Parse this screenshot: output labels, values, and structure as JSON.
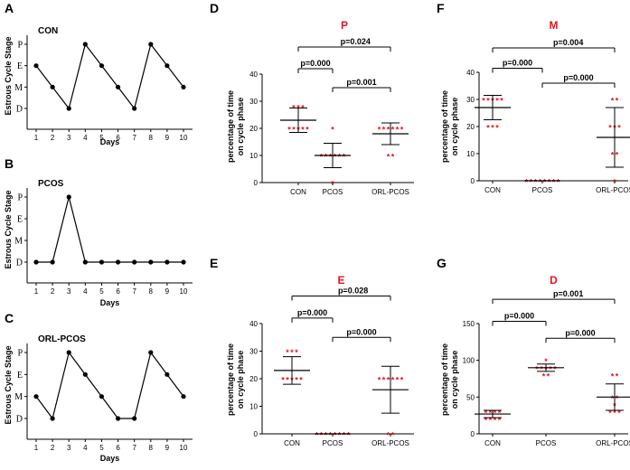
{
  "chart_data": [
    {
      "panel": "A",
      "type": "line",
      "inner_title": "CON",
      "x": [
        1,
        2,
        3,
        4,
        5,
        6,
        7,
        8,
        9,
        10
      ],
      "stages": [
        "E",
        "M",
        "D",
        "P",
        "E",
        "M",
        "D",
        "P",
        "E",
        "M"
      ],
      "y_categories": [
        "D",
        "M",
        "E",
        "P"
      ],
      "ylabel": "Estrous Cycle Stage",
      "xlabel": "Days"
    },
    {
      "panel": "B",
      "type": "line",
      "inner_title": "PCOS",
      "x": [
        1,
        2,
        3,
        4,
        5,
        6,
        7,
        8,
        9,
        10
      ],
      "stages": [
        "D",
        "D",
        "P",
        "D",
        "D",
        "D",
        "D",
        "D",
        "D",
        "D"
      ],
      "y_categories": [
        "D",
        "M",
        "E",
        "P"
      ],
      "ylabel": "Estrous Cycle Stage",
      "xlabel": "Days"
    },
    {
      "panel": "C",
      "type": "line",
      "inner_title": "ORL-PCOS",
      "x": [
        1,
        2,
        3,
        4,
        5,
        6,
        7,
        8,
        9,
        10
      ],
      "stages": [
        "M",
        "D",
        "P",
        "E",
        "M",
        "D",
        "D",
        "P",
        "E",
        "M"
      ],
      "y_categories": [
        "D",
        "M",
        "E",
        "P"
      ],
      "ylabel": "Estrous Cycle Stage",
      "xlabel": "Days"
    },
    {
      "panel": "D",
      "type": "scatter",
      "title": "P",
      "ylabel": "percentage of time\non cycle phase",
      "ylim": [
        0,
        40
      ],
      "yticks": [
        0,
        10,
        20,
        30,
        40
      ],
      "categories": [
        "CON",
        "PCOS",
        "ORL-PCOS"
      ],
      "groups": [
        {
          "mean": 23,
          "sd_upper": 27.5,
          "sd_lower": 18.5,
          "points": [
            28,
            28,
            28,
            20,
            20,
            20,
            20,
            20
          ]
        },
        {
          "mean": 10,
          "sd_upper": 14.5,
          "sd_lower": 5.5,
          "points": [
            20,
            10,
            10,
            10,
            10,
            10,
            10,
            0
          ]
        },
        {
          "mean": 18,
          "sd_upper": 22,
          "sd_lower": 14,
          "points": [
            20,
            20,
            20,
            20,
            20,
            20,
            10,
            10
          ]
        }
      ],
      "comparisons": [
        {
          "from": 0,
          "to": 2,
          "label": "p=0.024",
          "y": 50
        },
        {
          "from": 0,
          "to": 1,
          "label": "p=0.000",
          "y": 42
        },
        {
          "from": 1,
          "to": 2,
          "label": "p=0.001",
          "y": 35
        }
      ]
    },
    {
      "panel": "E",
      "type": "scatter",
      "title": "E",
      "ylabel": "percentage of time\non cycle phase",
      "ylim": [
        0,
        40
      ],
      "yticks": [
        0,
        10,
        20,
        30,
        40
      ],
      "categories": [
        "CON",
        "PCOS",
        "ORL-PCOS"
      ],
      "groups": [
        {
          "mean": 23,
          "sd_upper": 28,
          "sd_lower": 18,
          "points": [
            30,
            30,
            30,
            20,
            20,
            20,
            20,
            20
          ]
        },
        {
          "mean": 0,
          "sd_upper": 0,
          "sd_lower": 0,
          "points": [
            0,
            0,
            0,
            0,
            0,
            0,
            0,
            0
          ]
        },
        {
          "mean": 16,
          "sd_upper": 24.5,
          "sd_lower": 7.5,
          "points": [
            20,
            20,
            20,
            20,
            20,
            20,
            0,
            0
          ]
        }
      ],
      "comparisons": [
        {
          "from": 0,
          "to": 2,
          "label": "p=0.028",
          "y": 50
        },
        {
          "from": 0,
          "to": 1,
          "label": "p=0.000",
          "y": 42
        },
        {
          "from": 1,
          "to": 2,
          "label": "p=0.000",
          "y": 35
        }
      ]
    },
    {
      "panel": "F",
      "type": "scatter",
      "title": "M",
      "ylabel": "percentage of time\non cycle phase",
      "ylim": [
        0,
        40
      ],
      "yticks": [
        0,
        10,
        20,
        30,
        40
      ],
      "categories": [
        "CON",
        "PCOS",
        "ORL-PCOS"
      ],
      "groups": [
        {
          "mean": 27,
          "sd_upper": 31.5,
          "sd_lower": 22.5,
          "points": [
            30,
            30,
            30,
            30,
            30,
            20,
            20,
            20
          ]
        },
        {
          "mean": 0,
          "sd_upper": 0,
          "sd_lower": 0,
          "points": [
            0,
            0,
            0,
            0,
            0,
            0,
            0,
            0
          ]
        },
        {
          "mean": 16,
          "sd_upper": 27,
          "sd_lower": 5,
          "points": [
            30,
            30,
            20,
            20,
            20,
            10,
            10,
            0
          ]
        }
      ],
      "comparisons": [
        {
          "from": 0,
          "to": 2,
          "label": "p=0.004",
          "y": 49
        },
        {
          "from": 0,
          "to": 1,
          "label": "p=0.000",
          "y": 41.5
        },
        {
          "from": 1,
          "to": 2,
          "label": "p=0.000",
          "y": 36
        }
      ]
    },
    {
      "panel": "G",
      "type": "scatter",
      "title": "D",
      "ylabel": "percentage of time\non cycle phase",
      "ylim": [
        0,
        150
      ],
      "yticks": [
        0,
        50,
        100,
        150
      ],
      "categories": [
        "CON",
        "PCOS",
        "ORL-PCOS"
      ],
      "groups": [
        {
          "mean": 27,
          "sd_upper": 32,
          "sd_lower": 22,
          "points": [
            30,
            30,
            30,
            30,
            20,
            20,
            20,
            20
          ]
        },
        {
          "mean": 90,
          "sd_upper": 95,
          "sd_lower": 85,
          "points": [
            100,
            90,
            90,
            90,
            90,
            90,
            80,
            80
          ]
        },
        {
          "mean": 50,
          "sd_upper": 68,
          "sd_lower": 32,
          "points": [
            80,
            80,
            50,
            50,
            40,
            30,
            30,
            30
          ]
        }
      ],
      "comparisons": [
        {
          "from": 0,
          "to": 2,
          "label": "p=0.001",
          "y": 183
        },
        {
          "from": 0,
          "to": 1,
          "label": "p=0.000",
          "y": 153
        },
        {
          "from": 1,
          "to": 2,
          "label": "p=0.000",
          "y": 130
        }
      ]
    }
  ]
}
